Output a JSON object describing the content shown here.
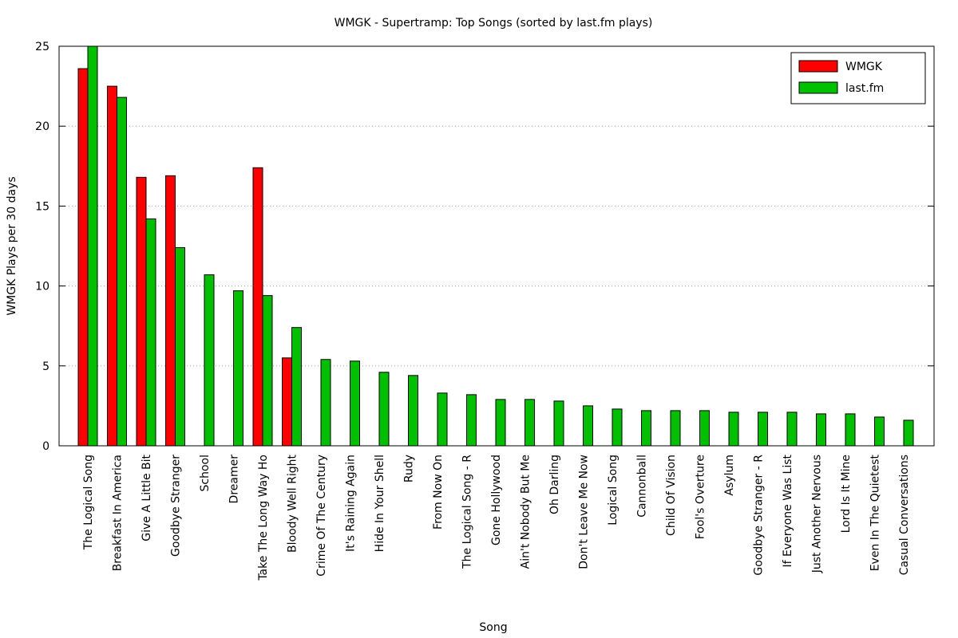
{
  "chart_data": {
    "type": "bar",
    "title": "WMGK - Supertramp: Top Songs (sorted by last.fm plays)",
    "xlabel": "Song",
    "ylabel": "WMGK Plays per 30 days",
    "ylim": [
      0,
      25
    ],
    "yticks": [
      0,
      5,
      10,
      15,
      20,
      25
    ],
    "grid": true,
    "legend_position": "top-right",
    "categories": [
      "The Logical Song",
      "Breakfast In America",
      "Give A Little Bit",
      "Goodbye Stranger",
      "School",
      "Dreamer",
      "Take The Long Way Ho",
      "Bloody Well Right",
      "Crime Of The Century",
      "It's Raining Again",
      "Hide In Your Shell",
      "Rudy",
      "From Now On",
      "The Logical Song - R",
      "Gone Hollywood",
      "Ain't Nobody But Me",
      "Oh Darling",
      "Don't Leave Me Now",
      "Logical Song",
      "Cannonball",
      "Child Of Vision",
      "Fool's Overture",
      "Asylum",
      "Goodbye Stranger - R",
      "If Everyone Was List",
      "Just Another Nervous",
      "Lord Is It Mine",
      "Even In The Quietest",
      "Casual Conversations"
    ],
    "series": [
      {
        "name": "WMGK",
        "color": "#ff0000",
        "values": [
          23.6,
          22.5,
          16.8,
          16.9,
          0,
          0,
          17.4,
          5.5,
          0,
          0,
          0,
          0,
          0,
          0,
          0,
          0,
          0,
          0,
          0,
          0,
          0,
          0,
          0,
          0,
          0,
          0,
          0,
          0,
          0
        ]
      },
      {
        "name": "last.fm",
        "color": "#00c000",
        "values": [
          25.0,
          21.8,
          14.2,
          12.4,
          10.7,
          9.7,
          9.4,
          7.4,
          5.4,
          5.3,
          4.6,
          4.4,
          3.3,
          3.2,
          2.9,
          2.9,
          2.8,
          2.5,
          2.3,
          2.2,
          2.2,
          2.2,
          2.1,
          2.1,
          2.1,
          2.0,
          2.0,
          1.8,
          1.6
        ]
      }
    ]
  }
}
